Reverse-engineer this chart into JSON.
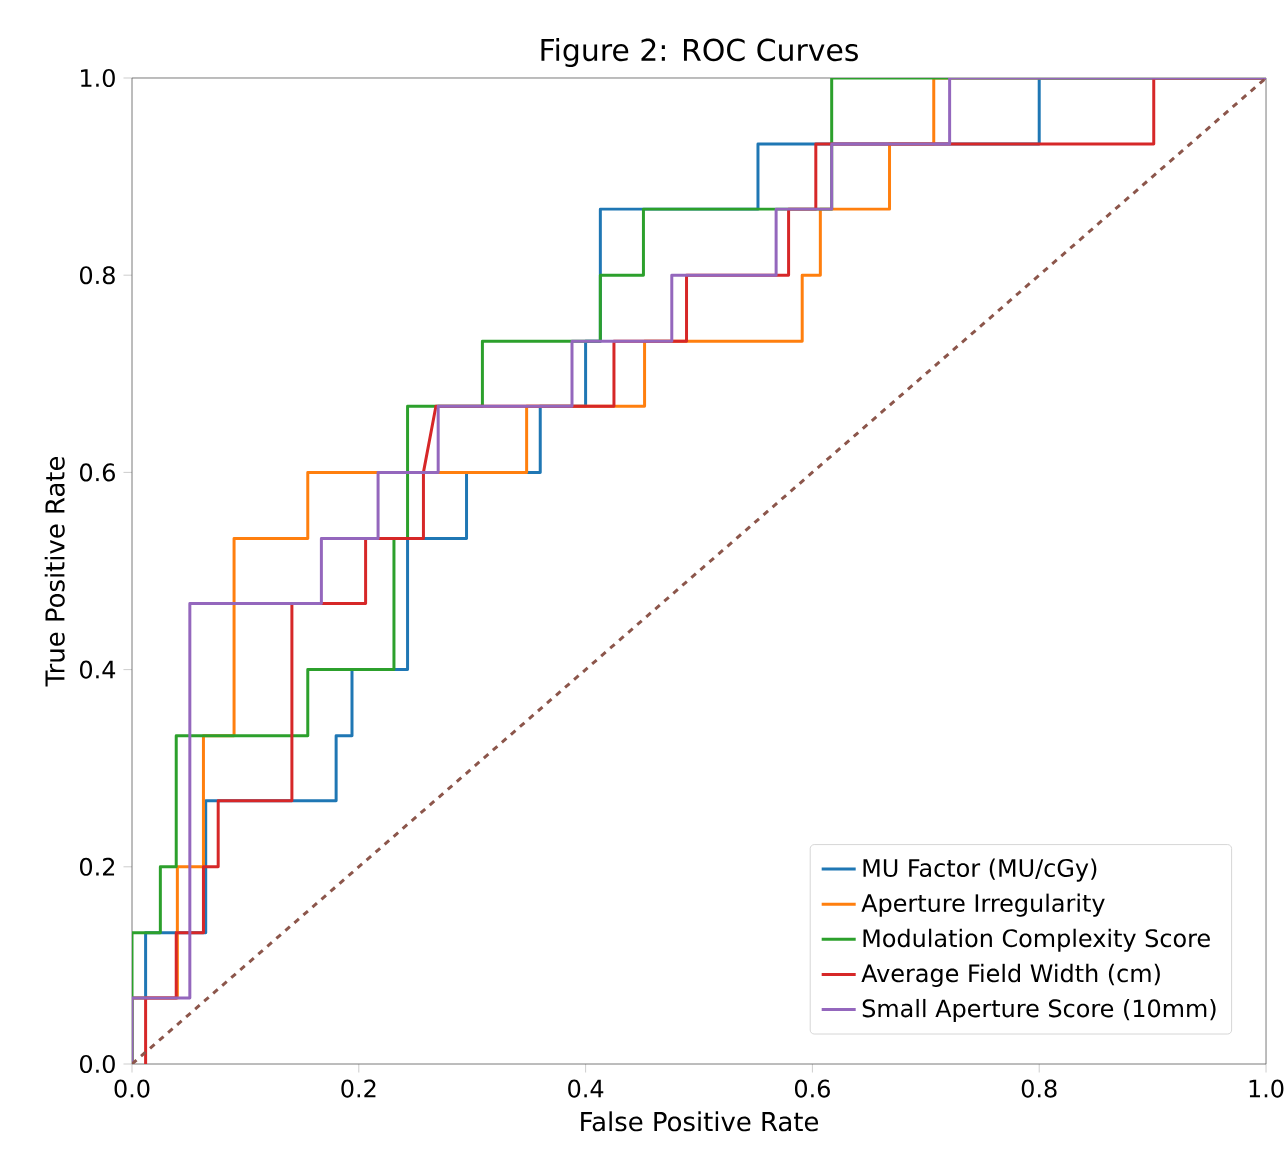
{
  "chart_data": {
    "type": "line",
    "title": "Figure 2: ROC Curves",
    "xlabel": "False Positive Rate",
    "ylabel": "True Positive Rate",
    "xlim": [
      0,
      1
    ],
    "ylim": [
      0,
      1
    ],
    "xticks": [
      {
        "value": 0,
        "label": "0.0"
      },
      {
        "value": 0.2,
        "label": "0.2"
      },
      {
        "value": 0.4,
        "label": "0.4"
      },
      {
        "value": 0.6,
        "label": "0.6"
      },
      {
        "value": 0.8,
        "label": "0.8"
      },
      {
        "value": 1,
        "label": "1.0"
      }
    ],
    "yticks": [
      {
        "value": 0,
        "label": "0.0"
      },
      {
        "value": 0.2,
        "label": "0.2"
      },
      {
        "value": 0.4,
        "label": "0.4"
      },
      {
        "value": 0.6,
        "label": "0.6"
      },
      {
        "value": 0.8,
        "label": "0.8"
      },
      {
        "value": 1,
        "label": "1.0"
      }
    ],
    "grid": false,
    "legend": "bottom right",
    "marker": "none",
    "series": [
      {
        "name": "MU Factor (MU/cGy)",
        "color": "#1f77b4",
        "x": [
          0,
          0,
          0.012,
          0.012,
          0.065,
          0.065,
          0.18,
          0.18,
          0.194,
          0.194,
          0.243,
          0.243,
          0.295,
          0.295,
          0.36,
          0.36,
          0.4,
          0.4,
          0.413,
          0.413,
          0.552,
          0.552,
          0.8,
          0.8,
          1
        ],
        "values": [
          0,
          0.067,
          0.067,
          0.133,
          0.133,
          0.267,
          0.267,
          0.333,
          0.333,
          0.4,
          0.4,
          0.533,
          0.533,
          0.6,
          0.6,
          0.667,
          0.667,
          0.733,
          0.733,
          0.867,
          0.867,
          0.933,
          0.933,
          1,
          1
        ]
      },
      {
        "name": "Aperture Irregularity",
        "color": "#ff7f0e",
        "x": [
          0,
          0,
          0.04,
          0.04,
          0.063,
          0.063,
          0.09,
          0.09,
          0.155,
          0.155,
          0.348,
          0.348,
          0.452,
          0.452,
          0.591,
          0.591,
          0.607,
          0.607,
          0.668,
          0.668,
          0.707,
          0.707,
          1
        ],
        "values": [
          0,
          0.067,
          0.067,
          0.2,
          0.2,
          0.333,
          0.333,
          0.533,
          0.533,
          0.6,
          0.6,
          0.667,
          0.667,
          0.733,
          0.733,
          0.8,
          0.8,
          0.867,
          0.867,
          0.933,
          0.933,
          1,
          1
        ]
      },
      {
        "name": "Modulation Complexity Score",
        "color": "#2ca02c",
        "x": [
          0,
          0,
          0.025,
          0.025,
          0.039,
          0.039,
          0.155,
          0.155,
          0.231,
          0.231,
          0.243,
          0.243,
          0.309,
          0.309,
          0.413,
          0.413,
          0.451,
          0.451,
          0.617,
          0.617,
          1
        ],
        "values": [
          0,
          0.133,
          0.133,
          0.2,
          0.2,
          0.333,
          0.333,
          0.4,
          0.4,
          0.533,
          0.533,
          0.667,
          0.667,
          0.733,
          0.733,
          0.8,
          0.8,
          0.867,
          0.867,
          1,
          1
        ]
      },
      {
        "name": "Average Field Width (cm)",
        "color": "#d62728",
        "x": [
          0.012,
          0.012,
          0.039,
          0.039,
          0.063,
          0.063,
          0.076,
          0.076,
          0.141,
          0.141,
          0.206,
          0.206,
          0.257,
          0.257,
          0.268,
          0.425,
          0.425,
          0.489,
          0.489,
          0.579,
          0.579,
          0.603,
          0.603,
          0.901,
          0.901,
          1
        ],
        "values": [
          0,
          0.067,
          0.067,
          0.133,
          0.133,
          0.2,
          0.2,
          0.267,
          0.267,
          0.467,
          0.467,
          0.533,
          0.533,
          0.6,
          0.667,
          0.667,
          0.733,
          0.733,
          0.8,
          0.8,
          0.867,
          0.867,
          0.933,
          0.933,
          1,
          1
        ]
      },
      {
        "name": "Small Aperture Score (10mm)",
        "color": "#9467bd",
        "x": [
          0,
          0,
          0.051,
          0.051,
          0.167,
          0.167,
          0.217,
          0.217,
          0.27,
          0.27,
          0.388,
          0.388,
          0.476,
          0.476,
          0.568,
          0.568,
          0.617,
          0.617,
          0.721,
          0.721,
          1
        ],
        "values": [
          0,
          0.067,
          0.067,
          0.467,
          0.467,
          0.533,
          0.533,
          0.6,
          0.6,
          0.667,
          0.667,
          0.733,
          0.733,
          0.8,
          0.8,
          0.867,
          0.867,
          0.933,
          0.933,
          1,
          1
        ]
      },
      {
        "color": "#8c564b",
        "line_style": "dashed",
        "x": [
          0,
          1
        ],
        "values": [
          0,
          1
        ]
      }
    ]
  }
}
